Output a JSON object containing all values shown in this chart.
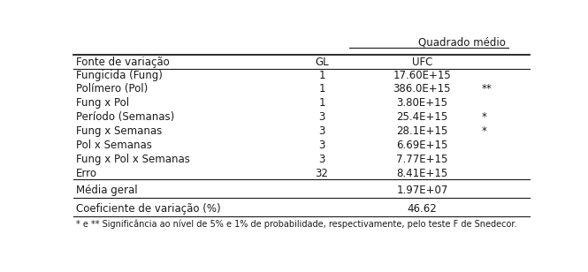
{
  "header_group": "Quadrado médio",
  "col_headers": [
    "Fonte de variação",
    "GL",
    "UFC"
  ],
  "rows": [
    [
      "Fungicida (Fung)",
      "1",
      "17.60E+15",
      ""
    ],
    [
      "Polímero (Pol)",
      "1",
      "386.0E+15",
      "**"
    ],
    [
      "Fung x Pol",
      "1",
      "3.80E+15",
      ""
    ],
    [
      "Período (Semanas)",
      "3",
      "25.4E+15",
      "*"
    ],
    [
      "Fung x Semanas",
      "3",
      "28.1E+15",
      "*"
    ],
    [
      "Pol x Semanas",
      "3",
      "6.69E+15",
      ""
    ],
    [
      "Fung x Pol x Semanas",
      "3",
      "7.77E+15",
      ""
    ],
    [
      "Erro",
      "32",
      "8.41E+15",
      ""
    ]
  ],
  "extra_rows": [
    [
      "Média geral",
      "",
      "1.97E+07",
      ""
    ],
    [
      "Coeficiente de variação (%)",
      "",
      "46.62",
      ""
    ]
  ],
  "footnote": "* e ** Significância ao nível de 5% e 1% de probabilidade, respectivamente, pelo teste F de Snedecor.",
  "bg_color": "#ffffff",
  "text_color": "#1a1a1a",
  "font_size": 8.5,
  "font_family": "DejaVu Sans"
}
